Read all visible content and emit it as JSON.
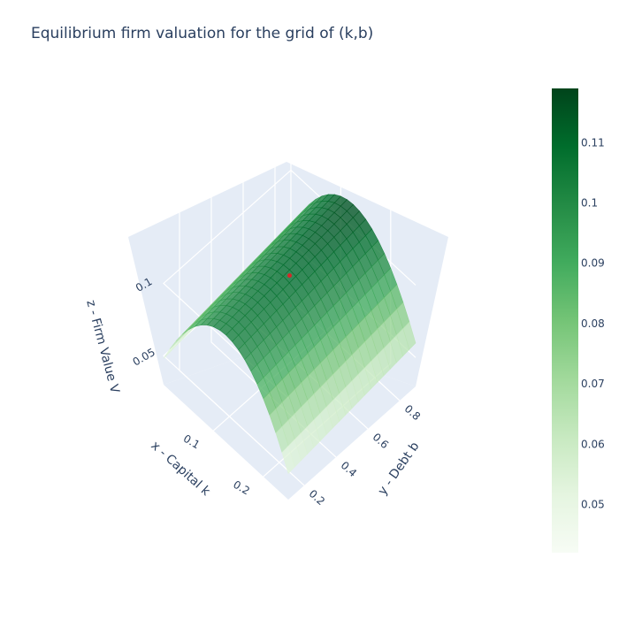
{
  "chart_data": {
    "type": "surface",
    "title": "Equilibrium firm valuation for the grid of (k,b)",
    "xlabel": "x - Capital k",
    "ylabel": "y - Debt b",
    "zlabel": "z - Firm Value V",
    "x_ticks": [
      "0.1",
      "0.2"
    ],
    "y_ticks": [
      "0.2",
      "0.4",
      "0.6",
      "0.8"
    ],
    "z_ticks": [
      "0.05",
      "0.1"
    ],
    "xlim": [
      0.0,
      0.25
    ],
    "ylim": [
      0.1,
      0.9
    ],
    "zlim": [
      0.03,
      0.14
    ],
    "colorscale": "Greens",
    "color_range": [
      0.042,
      0.119
    ],
    "colorbar_ticks": [
      "0.05",
      "0.06",
      "0.07",
      "0.08",
      "0.09",
      "0.1",
      "0.11"
    ],
    "surface": {
      "description_note": "",
      "k_values": [
        0.0,
        0.0125,
        0.025,
        0.0375,
        0.05,
        0.0625,
        0.075,
        0.0875,
        0.1,
        0.1125,
        0.125,
        0.1375,
        0.15,
        0.1625,
        0.175,
        0.1875,
        0.2,
        0.2125,
        0.225,
        0.2375,
        0.25
      ],
      "b_values": [
        0.1,
        0.14,
        0.18,
        0.22,
        0.26,
        0.3,
        0.34,
        0.38,
        0.42,
        0.46,
        0.5,
        0.54,
        0.58,
        0.62,
        0.66,
        0.7,
        0.74,
        0.78,
        0.82,
        0.86,
        0.9
      ],
      "v_min": 0.042,
      "v_max": 0.118,
      "k_peak": 0.125,
      "b_slope": 0.006
    },
    "highlight_point": {
      "k": 0.125,
      "b": 0.5,
      "v": 0.106,
      "color": "#d62728"
    },
    "grid": true,
    "background": "#e5ecf6"
  }
}
